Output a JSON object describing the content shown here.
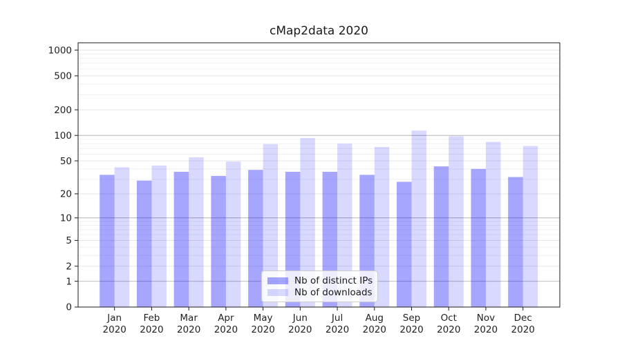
{
  "chart_data": {
    "type": "bar",
    "title": "cMap2data 2020",
    "categories": [
      "Jan",
      "Feb",
      "Mar",
      "Apr",
      "May",
      "Jun",
      "Jul",
      "Aug",
      "Sep",
      "Oct",
      "Nov",
      "Dec"
    ],
    "x_tick_second_line": "2020",
    "series": [
      {
        "name": "Nb of distinct IPs",
        "color": "rgba(0,0,255,0.35)",
        "values": [
          34,
          29,
          37,
          33,
          39,
          37,
          37,
          34,
          28,
          43,
          40,
          32
        ]
      },
      {
        "name": "Nb of downloads",
        "color": "rgba(0,0,255,0.15)",
        "values": [
          42,
          44,
          55,
          49,
          79,
          93,
          80,
          73,
          114,
          98,
          84,
          75
        ]
      }
    ],
    "yscale": "log1p",
    "ylim": [
      0,
      1220
    ],
    "yticks": [
      0,
      1,
      2,
      5,
      10,
      20,
      50,
      100,
      200,
      500,
      1000
    ],
    "y_minor_ticks": [
      3,
      4,
      6,
      7,
      8,
      9,
      30,
      40,
      60,
      70,
      80,
      90,
      300,
      400,
      600,
      700,
      800,
      900
    ],
    "y_decade_ticks": [
      1,
      10,
      100
    ],
    "grid": true,
    "legend_position": "lower center",
    "colors": {
      "spine": "#1a1a1a",
      "grid_major": "#b3b3b3",
      "grid_minor": "#ececec",
      "grid_submajor": "#e3e3e3",
      "text": "#1f1f1f"
    }
  }
}
